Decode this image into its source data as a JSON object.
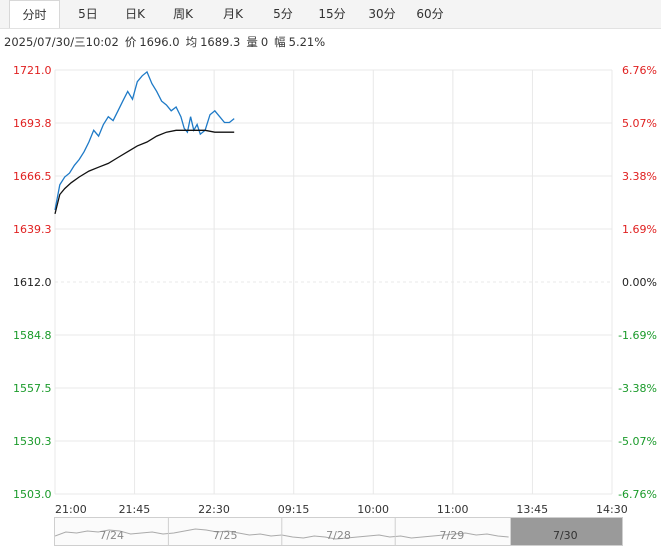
{
  "tabs": [
    "分时",
    "5日",
    "日K",
    "周K",
    "月K",
    "5分",
    "15分",
    "30分",
    "60分"
  ],
  "active_tab": 0,
  "info": {
    "datetime": "2025/07/30/三10:02",
    "price_label": "价",
    "price": "1696.0",
    "avg_label": "均",
    "avg": "1689.3",
    "volume_label": "量",
    "volume": "0",
    "change_label": "幅",
    "change": "5.21%"
  },
  "colors": {
    "up": "#e02020",
    "down": "#1a9a2a",
    "flat": "#222222",
    "price_line": "#1e7ac7",
    "avg_line": "#111111",
    "grid": "#e8e8e8"
  },
  "chart_data": {
    "type": "line",
    "ylim": [
      1503.0,
      1721.0
    ],
    "y_ticks": [
      "1721.0",
      "1693.8",
      "1666.5",
      "1639.3",
      "1612.0",
      "1584.8",
      "1557.5",
      "1530.3",
      "1503.0"
    ],
    "pct_ticks": [
      "6.76%",
      "5.07%",
      "3.38%",
      "1.69%",
      "0.00%",
      "-1.69%",
      "-3.38%",
      "-5.07%",
      "-6.76%"
    ],
    "x_ticks": [
      "21:00",
      "21:45",
      "22:30",
      "09:15",
      "10:00",
      "11:00",
      "13:45",
      "14:30"
    ],
    "session_minutes": 345,
    "series": [
      {
        "x": [
          0,
          3,
          6,
          9,
          12,
          15,
          18,
          21,
          24,
          27,
          30,
          33,
          36,
          39,
          42,
          45,
          48,
          51,
          54,
          57,
          60,
          63,
          66,
          69,
          72,
          75,
          78,
          80,
          82,
          84,
          86,
          88,
          90,
          93,
          96,
          99,
          102,
          105,
          108,
          111
        ],
        "y": [
          1649,
          1662,
          1666,
          1668,
          1672,
          1675,
          1679,
          1684,
          1690,
          1687,
          1693,
          1697,
          1695,
          1700,
          1705,
          1710,
          1706,
          1715,
          1718,
          1720,
          1714,
          1710,
          1705,
          1703,
          1700,
          1702,
          1697,
          1691,
          1689,
          1697,
          1690,
          1693,
          1688,
          1690,
          1698,
          1700,
          1697,
          1694,
          1694,
          1696
        ]
      },
      {
        "x": [
          0,
          3,
          6,
          10,
          15,
          21,
          27,
          33,
          39,
          45,
          51,
          57,
          63,
          69,
          75,
          81,
          87,
          93,
          99,
          105,
          111
        ],
        "y": [
          1647,
          1657,
          1660,
          1663,
          1666,
          1669,
          1671,
          1673,
          1676,
          1679,
          1682,
          1684,
          1687,
          1689,
          1690,
          1690,
          1690,
          1690,
          1689,
          1689,
          1689
        ]
      }
    ]
  },
  "navigator": {
    "dates": [
      "7/24",
      "7/25",
      "7/28",
      "7/29",
      "7/30"
    ]
  }
}
